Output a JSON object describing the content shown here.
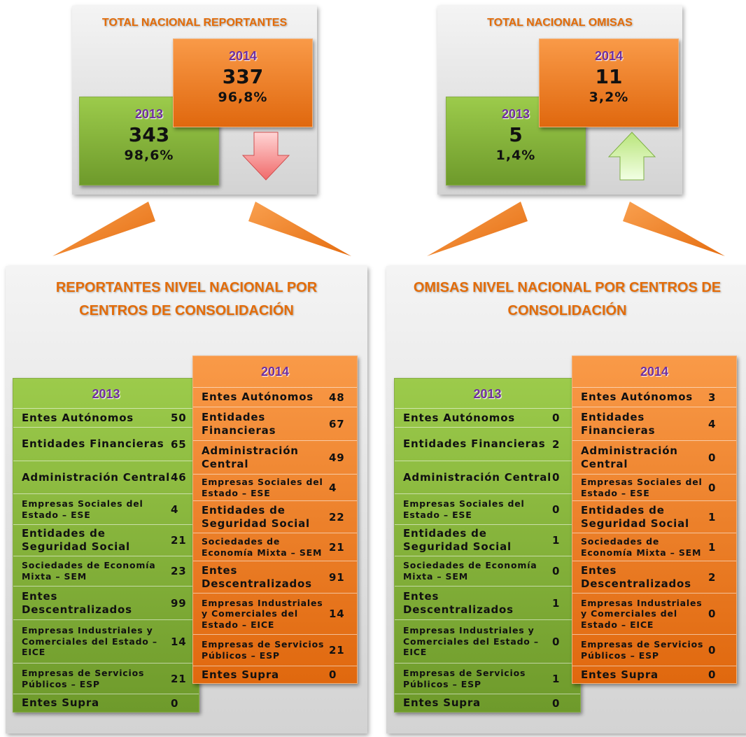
{
  "summary": [
    {
      "title": "TOTAL NACIONAL REPORTANTES",
      "y2013": {
        "year": "2013",
        "count": "343",
        "percent": "98,6%"
      },
      "y2014": {
        "year": "2014",
        "count": "337",
        "percent": "96,8%"
      }
    },
    {
      "title": "TOTAL NACIONAL OMISAS",
      "y2013": {
        "year": "2013",
        "count": "5",
        "percent": "1,4%"
      },
      "y2014": {
        "year": "2014",
        "count": "11",
        "percent": "3,2%"
      }
    }
  ],
  "detail": [
    {
      "title": [
        "REPORTANTES NIVEL NACIONAL POR",
        "CENTROS DE CONSOLIDACIÓN"
      ],
      "y2013": {
        "year": "2013",
        "rows": [
          [
            "Entes Autónomos",
            "50"
          ],
          [
            "Entidades Financieras",
            "65"
          ],
          [
            "Administración Central",
            "46"
          ],
          [
            "Empresas Sociales del Estado – ESE",
            "4"
          ],
          [
            "Entidades de Seguridad Social",
            "21"
          ],
          [
            "Sociedades de Economía Mixta – SEM",
            "23"
          ],
          [
            "Entes Descentralizados",
            "99"
          ],
          [
            "Empresas Industriales y Comerciales del Estado – EICE",
            "14"
          ],
          [
            "Empresas de Servicios Públicos – ESP",
            "21"
          ],
          [
            "Entes Supra",
            "0"
          ]
        ]
      },
      "y2014": {
        "year": "2014",
        "rows": [
          [
            "Entes Autónomos",
            "48"
          ],
          [
            "Entidades Financieras",
            "67"
          ],
          [
            "Administración Central",
            "49"
          ],
          [
            "Empresas Sociales del Estado – ESE",
            "4"
          ],
          [
            "Entidades de Seguridad Social",
            "22"
          ],
          [
            "Sociedades de Economía Mixta – SEM",
            "21"
          ],
          [
            "Entes Descentralizados",
            "91"
          ],
          [
            "Empresas Industriales y Comerciales del Estado – EICE",
            "14"
          ],
          [
            "Empresas de Servicios Públicos – ESP",
            "21"
          ],
          [
            "Entes Supra",
            "0"
          ]
        ]
      }
    },
    {
      "title": [
        "OMISAS NIVEL NACIONAL POR CENTROS DE",
        "CONSOLIDACIÓN"
      ],
      "y2013": {
        "year": "2013",
        "rows": [
          [
            "Entes Autónomos",
            "0"
          ],
          [
            "Entidades Financieras",
            "2"
          ],
          [
            "Administración Central",
            "0"
          ],
          [
            "Empresas Sociales del Estado – ESE",
            "0"
          ],
          [
            "Entidades de Seguridad Social",
            "1"
          ],
          [
            "Sociedades de Economía Mixta – SEM",
            "0"
          ],
          [
            "Entes Descentralizados",
            "1"
          ],
          [
            "Empresas Industriales y Comerciales del Estado – EICE",
            "0"
          ],
          [
            "Empresas de Servicios Públicos – ESP",
            "1"
          ],
          [
            "Entes Supra",
            "0"
          ]
        ]
      },
      "y2014": {
        "year": "2014",
        "rows": [
          [
            "Entes Autónomos",
            "3"
          ],
          [
            "Entidades Financieras",
            "4"
          ],
          [
            "Administración Central",
            "0"
          ],
          [
            "Empresas Sociales del Estado – ESE",
            "0"
          ],
          [
            "Entidades de Seguridad Social",
            "1"
          ],
          [
            "Sociedades de Economía Mixta – SEM",
            "1"
          ],
          [
            "Entes Descentralizados",
            "2"
          ],
          [
            "Empresas Industriales y Comerciales del Estado – EICE",
            "0"
          ],
          [
            "Empresas de Servicios Públicos – ESP",
            "0"
          ],
          [
            "Entes Supra",
            "0"
          ]
        ]
      }
    }
  ]
}
